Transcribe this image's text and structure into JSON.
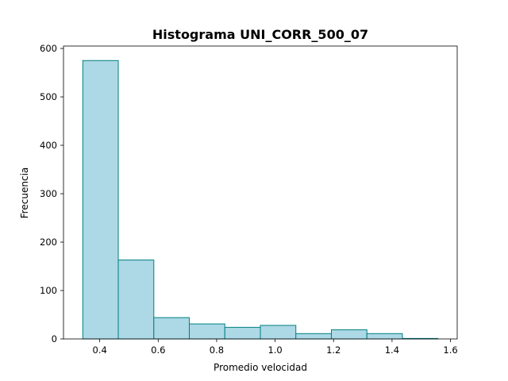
{
  "chart_data": {
    "type": "bar",
    "title": "Histograma UNI_CORR_500_07",
    "xlabel": "Promedio velocidad",
    "ylabel": "Frecuencia",
    "bin_edges": [
      0.342,
      0.4635,
      0.585,
      0.7065,
      0.828,
      0.9495,
      1.071,
      1.1925,
      1.314,
      1.4355,
      1.557
    ],
    "values": [
      575,
      163,
      44,
      31,
      24,
      28,
      11,
      19,
      11,
      1
    ],
    "xlim": [
      0.276,
      1.623
    ],
    "ylim": [
      0,
      605
    ],
    "xticks": [
      0.4,
      0.6,
      0.8,
      1.0,
      1.2,
      1.4,
      1.6
    ],
    "xtick_labels": [
      "0.4",
      "0.6",
      "0.8",
      "1.0",
      "1.2",
      "1.4",
      "1.6"
    ],
    "yticks": [
      0,
      100,
      200,
      300,
      400,
      500,
      600
    ],
    "ytick_labels": [
      "0",
      "100",
      "200",
      "300",
      "400",
      "500",
      "600"
    ],
    "bar_fill": "#add8e6",
    "bar_edge": "#008080",
    "grid": false
  }
}
